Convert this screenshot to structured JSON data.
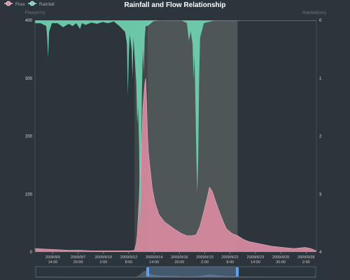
{
  "chart_data": {
    "type": "area",
    "title": "Rainfall and Flow Relationship",
    "legend": {
      "placement": "top-left",
      "items": [
        {
          "name": "Flow",
          "color": "#d4899e"
        },
        {
          "name": "Rainfall",
          "color": "#6fcfae"
        }
      ]
    },
    "y_left": {
      "label": "Flow(m³/s)",
      "range": [
        0,
        400
      ],
      "ticks": [
        "0",
        "100",
        "200",
        "300",
        "400"
      ]
    },
    "y_right": {
      "label": "Rainfall(mm)",
      "range": [
        0,
        4
      ],
      "inverse": true,
      "ticks": [
        "0",
        "1",
        "2",
        "3",
        "4"
      ]
    },
    "x_ticks": [
      {
        "date": "2009/9/5",
        "time": "14:00"
      },
      {
        "date": "2009/9/7",
        "time": "20:00"
      },
      {
        "date": "2009/9/10",
        "time": "2:00"
      },
      {
        "date": "2009/9/12",
        "time": "8:00"
      },
      {
        "date": "2009/9/14",
        "time": "14:00"
      },
      {
        "date": "2009/9/16",
        "time": "20:00"
      },
      {
        "date": "2009/9/19",
        "time": "2:00"
      },
      {
        "date": "2009/9/21",
        "time": "8:00"
      },
      {
        "date": "2009/9/23",
        "time": "14:00"
      },
      {
        "date": "2009/9/25",
        "time": "20:00"
      },
      {
        "date": "2009/9/28",
        "time": "2:00"
      }
    ],
    "x_range": [
      "2009/9/4 0:00",
      "2009/9/29 0:00"
    ],
    "highlight_periods": [
      {
        "from": "2009/9/12 20:00",
        "to": "2009/9/14 0:00",
        "color": "#3f4749"
      },
      {
        "from": "2009/9/14 0:00",
        "to": "2009/9/22 0:00",
        "color": "#4e5658"
      }
    ],
    "flow": [
      [
        "2009/9/4 0:00",
        6
      ],
      [
        "2009/9/5 0:00",
        5
      ],
      [
        "2009/9/6 0:00",
        4
      ],
      [
        "2009/9/7 0:00",
        3
      ],
      [
        "2009/9/8 0:00",
        3
      ],
      [
        "2009/9/9 0:00",
        2
      ],
      [
        "2009/9/10 0:00",
        2
      ],
      [
        "2009/9/11 0:00",
        2
      ],
      [
        "2009/9/12 0:00",
        2
      ],
      [
        "2009/9/12 12:00",
        2
      ],
      [
        "2009/9/12 20:00",
        3
      ],
      [
        "2009/9/13 0:00",
        15
      ],
      [
        "2009/9/13 2:00",
        30
      ],
      [
        "2009/9/13 4:00",
        60
      ],
      [
        "2009/9/13 6:00",
        90
      ],
      [
        "2009/9/13 8:00",
        130
      ],
      [
        "2009/9/13 10:00",
        150
      ],
      [
        "2009/9/13 12:00",
        200
      ],
      [
        "2009/9/13 14:00",
        250
      ],
      [
        "2009/9/13 16:00",
        270
      ],
      [
        "2009/9/13 18:00",
        290
      ],
      [
        "2009/9/13 20:00",
        300
      ],
      [
        "2009/9/13 22:00",
        260
      ],
      [
        "2009/9/14 0:00",
        200
      ],
      [
        "2009/9/14 2:00",
        170
      ],
      [
        "2009/9/14 6:00",
        140
      ],
      [
        "2009/9/14 10:00",
        110
      ],
      [
        "2009/9/14 16:00",
        85
      ],
      [
        "2009/9/15 0:00",
        65
      ],
      [
        "2009/9/15 12:00",
        52
      ],
      [
        "2009/9/16 0:00",
        45
      ],
      [
        "2009/9/16 12:00",
        38
      ],
      [
        "2009/9/17 0:00",
        32
      ],
      [
        "2009/9/17 12:00",
        28
      ],
      [
        "2009/9/18 0:00",
        28
      ],
      [
        "2009/9/18 8:00",
        30
      ],
      [
        "2009/9/18 16:00",
        45
      ],
      [
        "2009/9/19 0:00",
        70
      ],
      [
        "2009/9/19 6:00",
        90
      ],
      [
        "2009/9/19 12:00",
        112
      ],
      [
        "2009/9/19 18:00",
        105
      ],
      [
        "2009/9/20 0:00",
        90
      ],
      [
        "2009/9/20 8:00",
        72
      ],
      [
        "2009/9/20 16:00",
        55
      ],
      [
        "2009/9/21 0:00",
        40
      ],
      [
        "2009/9/21 12:00",
        32
      ],
      [
        "2009/9/22 0:00",
        28
      ],
      [
        "2009/9/22 12:00",
        22
      ],
      [
        "2009/9/23 0:00",
        18
      ],
      [
        "2009/9/24 0:00",
        14
      ],
      [
        "2009/9/25 0:00",
        10
      ],
      [
        "2009/9/26 0:00",
        8
      ],
      [
        "2009/9/27 0:00",
        6
      ],
      [
        "2009/9/28 0:00",
        8
      ],
      [
        "2009/9/28 12:00",
        6
      ],
      [
        "2009/9/29 0:00",
        2
      ]
    ],
    "rainfall": [
      [
        "2009/9/4 0:00",
        0.05
      ],
      [
        "2009/9/4 12:00",
        0.05
      ],
      [
        "2009/9/5 0:00",
        0.1
      ],
      [
        "2009/9/5 2:00",
        0.3
      ],
      [
        "2009/9/5 4:00",
        0.65
      ],
      [
        "2009/9/5 6:00",
        0.2
      ],
      [
        "2009/9/5 12:00",
        0.05
      ],
      [
        "2009/9/6 0:00",
        0.05
      ],
      [
        "2009/9/6 12:00",
        0.12
      ],
      [
        "2009/9/7 0:00",
        0.06
      ],
      [
        "2009/9/7 8:00",
        0.1
      ],
      [
        "2009/9/7 16:00",
        0.05
      ],
      [
        "2009/9/8 0:00",
        0.15
      ],
      [
        "2009/9/8 4:00",
        0.05
      ],
      [
        "2009/9/8 12:00",
        0.08
      ],
      [
        "2009/9/9 0:00",
        0.04
      ],
      [
        "2009/9/9 12:00",
        0.06
      ],
      [
        "2009/9/10 0:00",
        0.03
      ],
      [
        "2009/9/10 12:00",
        0.05
      ],
      [
        "2009/9/11 0:00",
        0.02
      ],
      [
        "2009/9/11 12:00",
        0.1
      ],
      [
        "2009/9/12 0:00",
        0.2
      ],
      [
        "2009/9/12 4:00",
        0.4
      ],
      [
        "2009/9/12 6:00",
        1.3
      ],
      [
        "2009/9/12 8:00",
        0.6
      ],
      [
        "2009/9/12 10:00",
        0.25
      ],
      [
        "2009/9/12 14:00",
        0.5
      ],
      [
        "2009/9/12 16:00",
        1.0
      ],
      [
        "2009/9/12 18:00",
        0.3
      ],
      [
        "2009/9/13 0:00",
        1.1
      ],
      [
        "2009/9/13 2:00",
        1.8
      ],
      [
        "2009/9/13 4:00",
        1.5
      ],
      [
        "2009/9/13 6:00",
        2.2
      ],
      [
        "2009/9/13 8:00",
        3.6
      ],
      [
        "2009/9/13 10:00",
        2.8
      ],
      [
        "2009/9/13 12:00",
        1.2
      ],
      [
        "2009/9/13 14:00",
        0.5
      ],
      [
        "2009/9/13 16:00",
        0.9
      ],
      [
        "2009/9/13 18:00",
        0.3
      ],
      [
        "2009/9/13 20:00",
        0.1
      ],
      [
        "2009/9/14 0:00",
        0.1
      ],
      [
        "2009/9/14 12:00",
        0.02
      ],
      [
        "2009/9/15 0:00",
        0.0
      ],
      [
        "2009/9/16 0:00",
        0.0
      ],
      [
        "2009/9/17 0:00",
        0.0
      ],
      [
        "2009/9/17 12:00",
        0.05
      ],
      [
        "2009/9/17 16:00",
        0.35
      ],
      [
        "2009/9/17 20:00",
        0.2
      ],
      [
        "2009/9/18 0:00",
        0.4
      ],
      [
        "2009/9/18 2:00",
        1.0
      ],
      [
        "2009/9/18 4:00",
        0.6
      ],
      [
        "2009/9/18 6:00",
        1.4
      ],
      [
        "2009/9/18 8:00",
        2.3
      ],
      [
        "2009/9/18 10:00",
        3.0
      ],
      [
        "2009/9/18 12:00",
        2.4
      ],
      [
        "2009/9/18 14:00",
        1.0
      ],
      [
        "2009/9/18 16:00",
        0.3
      ],
      [
        "2009/9/19 0:00",
        0.05
      ],
      [
        "2009/9/20 0:00",
        0.0
      ],
      [
        "2009/9/29 0:00",
        0.0
      ]
    ]
  }
}
